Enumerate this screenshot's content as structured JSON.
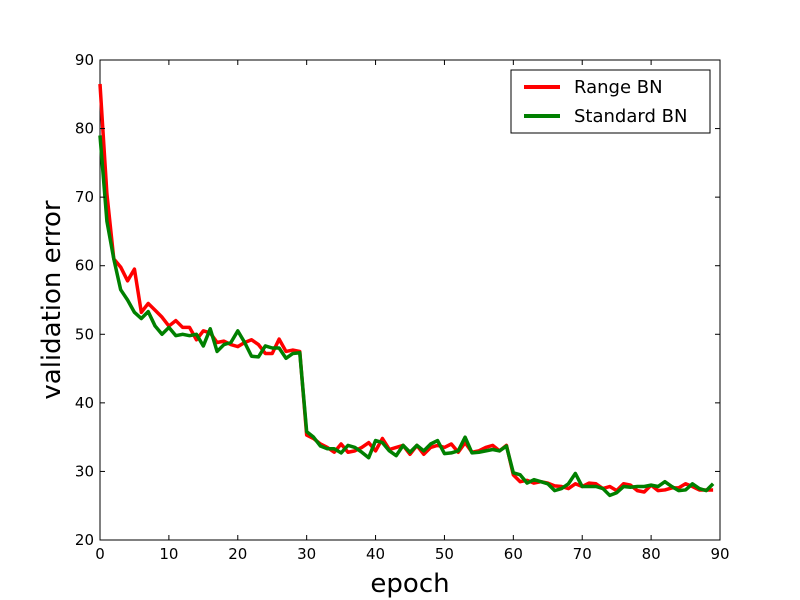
{
  "chart_data": {
    "type": "line",
    "xlabel": "epoch",
    "ylabel": "validation error",
    "xlim": [
      0,
      90
    ],
    "ylim": [
      20,
      90
    ],
    "xticks": [
      0,
      10,
      20,
      30,
      40,
      50,
      60,
      70,
      80,
      90
    ],
    "yticks": [
      20,
      30,
      40,
      50,
      60,
      70,
      80,
      90
    ],
    "grid": false,
    "legend_position": "top-right",
    "series": [
      {
        "name": "Range BN",
        "color": "#ff0000",
        "x": [
          0,
          1,
          2,
          3,
          4,
          5,
          6,
          7,
          8,
          9,
          10,
          11,
          12,
          13,
          14,
          15,
          16,
          17,
          18,
          19,
          20,
          21,
          22,
          23,
          24,
          25,
          26,
          27,
          28,
          29,
          30,
          31,
          32,
          33,
          34,
          35,
          36,
          37,
          38,
          39,
          40,
          41,
          42,
          43,
          44,
          45,
          46,
          47,
          48,
          49,
          50,
          51,
          52,
          53,
          54,
          55,
          56,
          57,
          58,
          59,
          60,
          61,
          62,
          63,
          64,
          65,
          66,
          67,
          68,
          69,
          70,
          71,
          72,
          73,
          74,
          75,
          76,
          77,
          78,
          79,
          80,
          81,
          82,
          83,
          84,
          85,
          86,
          87,
          88,
          89
        ],
        "values": [
          86.5,
          70.5,
          61.0,
          59.8,
          57.8,
          59.5,
          53.2,
          54.5,
          53.5,
          52.5,
          51.2,
          52.0,
          51.0,
          51.0,
          49.2,
          50.5,
          50.2,
          48.8,
          49.0,
          48.5,
          48.2,
          48.8,
          49.2,
          48.5,
          47.2,
          47.2,
          49.3,
          47.5,
          47.7,
          47.5,
          35.3,
          34.8,
          34.0,
          33.5,
          32.8,
          34.0,
          32.8,
          33.0,
          33.5,
          34.2,
          33.0,
          34.8,
          33.2,
          33.5,
          33.8,
          32.5,
          33.8,
          32.5,
          33.5,
          33.8,
          33.5,
          34.0,
          32.8,
          34.2,
          32.8,
          33.0,
          33.5,
          33.8,
          33.0,
          33.8,
          29.5,
          28.5,
          28.7,
          28.3,
          28.5,
          28.3,
          27.9,
          27.8,
          27.5,
          28.2,
          27.8,
          28.3,
          28.2,
          27.5,
          27.8,
          27.2,
          28.2,
          28.0,
          27.2,
          27.0,
          28.0,
          27.2,
          27.3,
          27.6,
          27.6,
          28.2,
          27.8,
          27.3,
          27.3,
          27.3
        ]
      },
      {
        "name": "Standard BN",
        "color": "#008000",
        "x": [
          0,
          1,
          2,
          3,
          4,
          5,
          6,
          7,
          8,
          9,
          10,
          11,
          12,
          13,
          14,
          15,
          16,
          17,
          18,
          19,
          20,
          21,
          22,
          23,
          24,
          25,
          26,
          27,
          28,
          29,
          30,
          31,
          32,
          33,
          34,
          35,
          36,
          37,
          38,
          39,
          40,
          41,
          42,
          43,
          44,
          45,
          46,
          47,
          48,
          49,
          50,
          51,
          52,
          53,
          54,
          55,
          56,
          57,
          58,
          59,
          60,
          61,
          62,
          63,
          64,
          65,
          66,
          67,
          68,
          69,
          70,
          71,
          72,
          73,
          74,
          75,
          76,
          77,
          78,
          79,
          80,
          81,
          82,
          83,
          84,
          85,
          86,
          87,
          88,
          89
        ],
        "values": [
          79.0,
          66.5,
          61.0,
          56.5,
          55.0,
          53.2,
          52.3,
          53.3,
          51.2,
          50.0,
          51.0,
          49.8,
          50.0,
          49.8,
          50.0,
          48.3,
          50.8,
          47.5,
          48.5,
          48.8,
          50.5,
          48.8,
          46.8,
          46.7,
          48.3,
          48.0,
          48.0,
          46.5,
          47.2,
          47.3,
          35.8,
          35.0,
          33.7,
          33.3,
          33.3,
          32.7,
          33.8,
          33.5,
          32.8,
          32.0,
          34.5,
          34.2,
          33.0,
          32.3,
          33.8,
          32.8,
          33.8,
          33.0,
          34.0,
          34.5,
          32.6,
          32.7,
          33.0,
          35.0,
          32.7,
          32.8,
          33.0,
          33.2,
          33.0,
          33.7,
          29.8,
          29.5,
          28.3,
          28.8,
          28.5,
          28.2,
          27.2,
          27.5,
          28.2,
          29.7,
          27.8,
          27.8,
          27.8,
          27.5,
          26.5,
          26.9,
          27.8,
          27.7,
          27.8,
          27.8,
          28.0,
          27.8,
          28.5,
          27.8,
          27.2,
          27.3,
          28.2,
          27.5,
          27.2,
          28.2
        ]
      }
    ]
  }
}
